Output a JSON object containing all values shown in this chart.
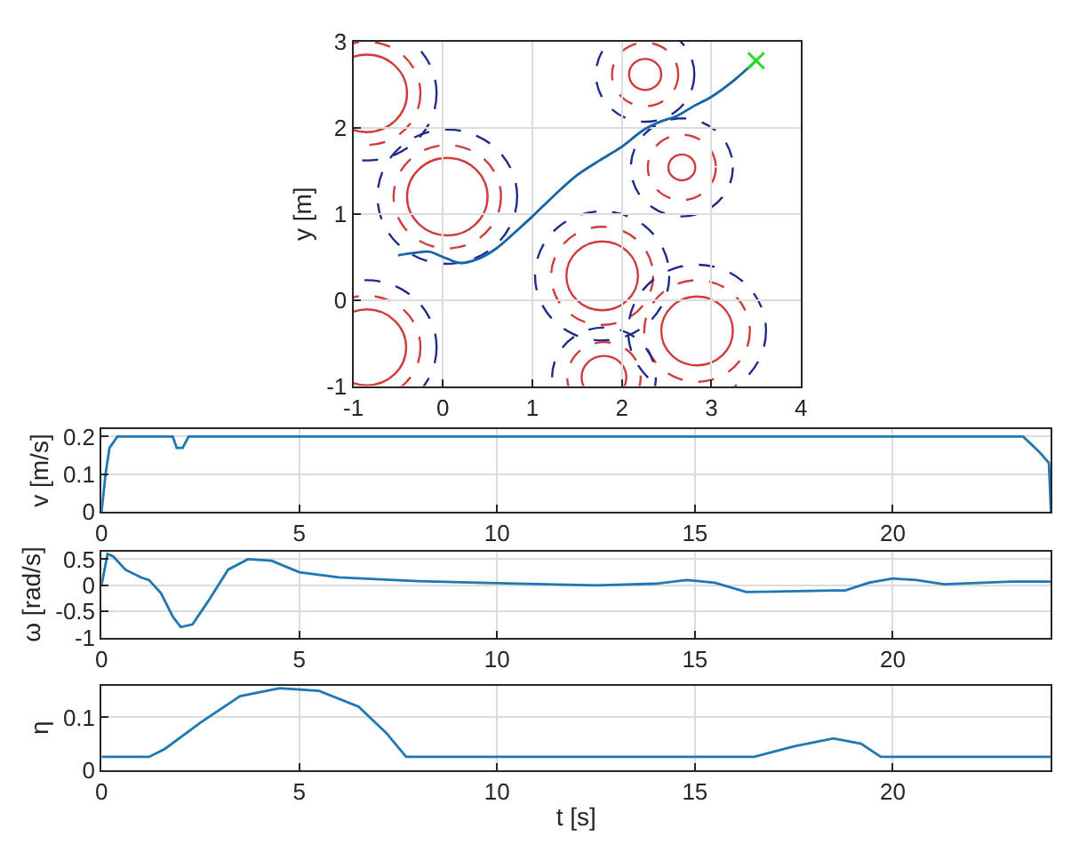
{
  "chart_data": [
    {
      "type": "line",
      "ylabel": "y [m]",
      "xlim": [
        -1,
        4
      ],
      "ylim": [
        -1,
        3
      ],
      "xticks": [
        -1,
        0,
        1,
        2,
        3,
        4
      ],
      "yticks": [
        -1,
        0,
        1,
        2,
        3
      ],
      "grid": true,
      "series": [
        {
          "color": "#1565a8",
          "line_style": "solid",
          "x": [
            -0.5,
            -0.3,
            -0.15,
            0,
            0.2,
            0.4,
            0.6,
            0.8,
            1,
            1.25,
            1.5,
            1.75,
            2,
            2.25,
            2.45,
            2.6,
            2.8,
            3,
            3.25,
            3.5
          ],
          "values": [
            0.52,
            0.55,
            0.56,
            0.5,
            0.43,
            0.48,
            0.6,
            0.78,
            0.97,
            1.22,
            1.45,
            1.62,
            1.78,
            1.98,
            2.08,
            2.13,
            2.25,
            2.36,
            2.55,
            2.78
          ]
        },
        {
          "type": "scatter",
          "marker": "cross",
          "color": "#22dd22",
          "x": [
            3.5
          ],
          "values": [
            2.78
          ]
        }
      ]
    },
    {
      "type": "line",
      "ylabel": "v [m/s]",
      "xlim": [
        0,
        24
      ],
      "ylim": [
        0,
        0.22
      ],
      "xticks": [
        0,
        5,
        10,
        15,
        20
      ],
      "yticks": [
        0,
        0.1,
        0.2
      ],
      "grid": true,
      "series": [
        {
          "color": "#1f77b4",
          "x": [
            0,
            0.1,
            0.2,
            0.4,
            1.8,
            1.9,
            2.05,
            2.2,
            23.3,
            23.7,
            23.95,
            24
          ],
          "values": [
            0,
            0.1,
            0.17,
            0.2,
            0.2,
            0.17,
            0.17,
            0.2,
            0.2,
            0.16,
            0.13,
            0
          ]
        }
      ]
    },
    {
      "type": "line",
      "ylabel": "ω [rad/s]",
      "xlim": [
        0,
        24
      ],
      "ylim": [
        -1,
        0.65
      ],
      "xticks": [
        0,
        5,
        10,
        15,
        20
      ],
      "yticks": [
        -1,
        -0.5,
        0,
        0.5
      ],
      "grid": true,
      "series": [
        {
          "color": "#1f77b4",
          "x": [
            0,
            0.15,
            0.3,
            0.6,
            1,
            1.2,
            1.5,
            1.8,
            2,
            2.3,
            2.7,
            3.2,
            3.7,
            4.3,
            5,
            6,
            8,
            10,
            12.5,
            14,
            14.8,
            15.5,
            16.3,
            17,
            18.5,
            18.8,
            19.4,
            20,
            20.6,
            21.3,
            22,
            23,
            24
          ],
          "values": [
            0,
            0.6,
            0.55,
            0.3,
            0.15,
            0.1,
            -0.15,
            -0.6,
            -0.8,
            -0.75,
            -0.3,
            0.3,
            0.5,
            0.47,
            0.25,
            0.15,
            0.08,
            0.04,
            0.0,
            0.03,
            0.1,
            0.05,
            -0.13,
            -0.12,
            -0.1,
            -0.1,
            0.05,
            0.13,
            0.1,
            0.02,
            0.04,
            0.07,
            0.07
          ]
        }
      ]
    },
    {
      "type": "line",
      "ylabel": "η",
      "xlabel": "t [s]",
      "xlim": [
        0,
        24
      ],
      "ylim": [
        0,
        0.16
      ],
      "xticks": [
        0,
        5,
        10,
        15,
        20
      ],
      "yticks": [
        0,
        0.1
      ],
      "grid": true,
      "series": [
        {
          "color": "#1f77b4",
          "x": [
            0,
            1.2,
            1.6,
            2.5,
            3.5,
            4.5,
            5.5,
            6.5,
            7.2,
            7.7,
            16.5,
            17.5,
            18.5,
            19.2,
            19.7,
            24
          ],
          "values": [
            0.025,
            0.025,
            0.04,
            0.09,
            0.14,
            0.155,
            0.15,
            0.12,
            0.07,
            0.025,
            0.025,
            0.045,
            0.06,
            0.05,
            0.025,
            0.025
          ]
        }
      ]
    }
  ]
}
